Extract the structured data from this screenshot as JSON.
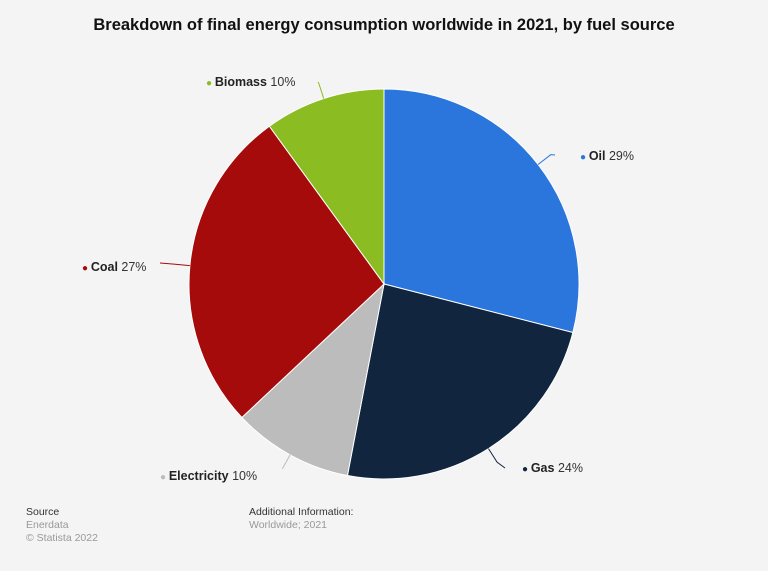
{
  "chart_data": {
    "type": "pie",
    "title": "Breakdown of final energy consumption worldwide in 2021, by fuel source",
    "unit": "%",
    "slices": [
      {
        "label": "Oil",
        "value": 29,
        "color": "#2a76dd"
      },
      {
        "label": "Gas",
        "value": 24,
        "color": "#11253f"
      },
      {
        "label": "Electricity",
        "value": 10,
        "color": "#bcbcbc"
      },
      {
        "label": "Coal",
        "value": 27,
        "color": "#a50b0b"
      },
      {
        "label": "Biomass",
        "value": 10,
        "color": "#8bbc21"
      }
    ]
  },
  "footer": {
    "source_heading": "Source",
    "source_name": "Enerdata",
    "copyright": "© Statista 2022",
    "info_heading": "Additional Information:",
    "info_text": "Worldwide; 2021"
  }
}
